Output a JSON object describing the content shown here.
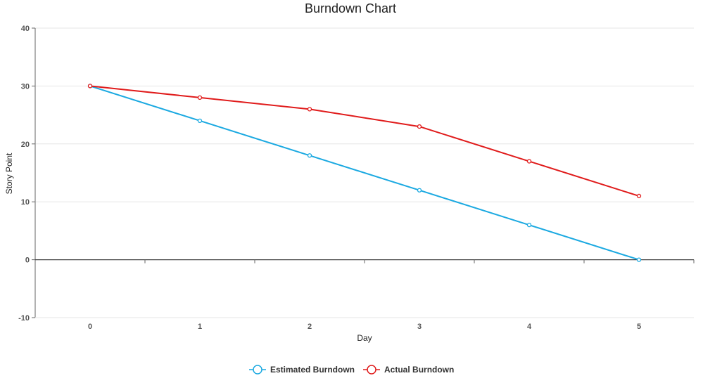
{
  "chart_data": {
    "type": "line",
    "title": "Burndown Chart",
    "xlabel": "Day",
    "ylabel": "Story Point",
    "x": [
      0,
      1,
      2,
      3,
      4,
      5
    ],
    "xlim": [
      -0.5,
      5.5
    ],
    "ylim": [
      -10,
      40
    ],
    "yticks": [
      -10,
      0,
      10,
      20,
      30,
      40
    ],
    "grid": true,
    "legend_position": "bottom-center",
    "series": [
      {
        "name": "Estimated Burndown",
        "color": "#1ba9e1",
        "values": [
          30,
          24,
          18,
          12,
          6,
          0
        ]
      },
      {
        "name": "Actual Burndown",
        "color": "#e01b1b",
        "values": [
          30,
          28,
          26,
          23,
          17,
          11
        ]
      }
    ]
  }
}
